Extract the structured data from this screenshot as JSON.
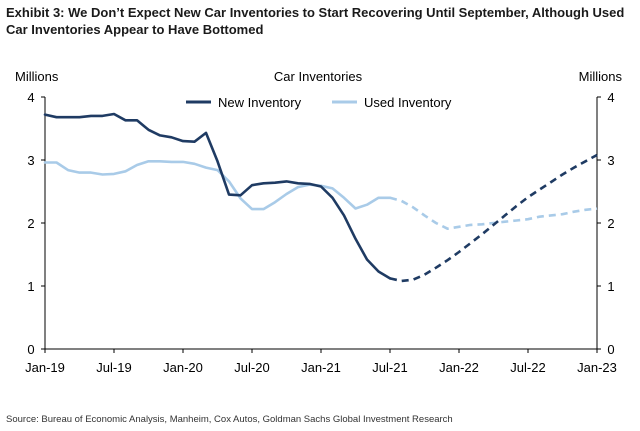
{
  "header": {
    "title": "Exhibit 3: We Don’t Expect New Car Inventories to Start Recovering Until September, Although Used Car Inventories Appear to Have Bottomed"
  },
  "footer": {
    "source": "Source: Bureau of Economic Analysis, Manheim, Cox Autos, Goldman Sachs Global Investment Research"
  },
  "colors": {
    "new_inventory": "#1f3b63",
    "used_inventory": "#a9cbe8",
    "axis": "#000000"
  },
  "chart_data": {
    "type": "line",
    "title": "Car Inventories",
    "ylabel_left": "Millions",
    "ylabel_right": "Millions",
    "ylim": [
      0,
      4
    ],
    "yticks": [
      0,
      1,
      2,
      3,
      4
    ],
    "xlim": [
      "2019-01",
      "2023-01"
    ],
    "xticks": [
      {
        "label": "Jan-19",
        "date": "2019-01"
      },
      {
        "label": "Jul-19",
        "date": "2019-07"
      },
      {
        "label": "Jan-20",
        "date": "2020-01"
      },
      {
        "label": "Jul-20",
        "date": "2020-07"
      },
      {
        "label": "Jan-21",
        "date": "2021-01"
      },
      {
        "label": "Jul-21",
        "date": "2021-07"
      },
      {
        "label": "Jan-22",
        "date": "2022-01"
      },
      {
        "label": "Jul-22",
        "date": "2022-07"
      },
      {
        "label": "Jan-23",
        "date": "2023-01"
      }
    ],
    "grid": false,
    "legend_position": "top-center",
    "series": [
      {
        "name": "New Inventory",
        "color_key": "new_inventory",
        "actual": [
          {
            "date": "2019-01",
            "y": 3.72
          },
          {
            "date": "2019-02",
            "y": 3.68
          },
          {
            "date": "2019-03",
            "y": 3.68
          },
          {
            "date": "2019-04",
            "y": 3.68
          },
          {
            "date": "2019-05",
            "y": 3.7
          },
          {
            "date": "2019-06",
            "y": 3.7
          },
          {
            "date": "2019-07",
            "y": 3.73
          },
          {
            "date": "2019-08",
            "y": 3.63
          },
          {
            "date": "2019-09",
            "y": 3.63
          },
          {
            "date": "2019-10",
            "y": 3.48
          },
          {
            "date": "2019-11",
            "y": 3.39
          },
          {
            "date": "2019-12",
            "y": 3.36
          },
          {
            "date": "2020-01",
            "y": 3.3
          },
          {
            "date": "2020-02",
            "y": 3.29
          },
          {
            "date": "2020-03",
            "y": 3.43
          },
          {
            "date": "2020-04",
            "y": 2.98
          },
          {
            "date": "2020-05",
            "y": 2.45
          },
          {
            "date": "2020-06",
            "y": 2.44
          },
          {
            "date": "2020-07",
            "y": 2.6
          },
          {
            "date": "2020-08",
            "y": 2.63
          },
          {
            "date": "2020-09",
            "y": 2.64
          },
          {
            "date": "2020-10",
            "y": 2.66
          },
          {
            "date": "2020-11",
            "y": 2.63
          },
          {
            "date": "2020-12",
            "y": 2.62
          },
          {
            "date": "2021-01",
            "y": 2.58
          },
          {
            "date": "2021-02",
            "y": 2.4
          },
          {
            "date": "2021-03",
            "y": 2.12
          },
          {
            "date": "2021-04",
            "y": 1.75
          },
          {
            "date": "2021-05",
            "y": 1.42
          },
          {
            "date": "2021-06",
            "y": 1.23
          },
          {
            "date": "2021-07",
            "y": 1.12
          }
        ],
        "forecast": [
          {
            "date": "2021-07",
            "y": 1.12
          },
          {
            "date": "2021-08",
            "y": 1.08
          },
          {
            "date": "2021-09",
            "y": 1.1
          },
          {
            "date": "2021-10",
            "y": 1.18
          },
          {
            "date": "2021-11",
            "y": 1.29
          },
          {
            "date": "2021-12",
            "y": 1.41
          },
          {
            "date": "2022-01",
            "y": 1.54
          },
          {
            "date": "2022-02",
            "y": 1.68
          },
          {
            "date": "2022-03",
            "y": 1.82
          },
          {
            "date": "2022-04",
            "y": 1.97
          },
          {
            "date": "2022-05",
            "y": 2.12
          },
          {
            "date": "2022-06",
            "y": 2.27
          },
          {
            "date": "2022-07",
            "y": 2.41
          },
          {
            "date": "2022-08",
            "y": 2.53
          },
          {
            "date": "2022-09",
            "y": 2.65
          },
          {
            "date": "2022-10",
            "y": 2.77
          },
          {
            "date": "2022-11",
            "y": 2.88
          },
          {
            "date": "2022-12",
            "y": 2.98
          },
          {
            "date": "2023-01",
            "y": 3.08
          }
        ]
      },
      {
        "name": "Used Inventory",
        "color_key": "used_inventory",
        "actual": [
          {
            "date": "2019-01",
            "y": 2.96
          },
          {
            "date": "2019-02",
            "y": 2.96
          },
          {
            "date": "2019-03",
            "y": 2.84
          },
          {
            "date": "2019-04",
            "y": 2.8
          },
          {
            "date": "2019-05",
            "y": 2.8
          },
          {
            "date": "2019-06",
            "y": 2.77
          },
          {
            "date": "2019-07",
            "y": 2.78
          },
          {
            "date": "2019-08",
            "y": 2.82
          },
          {
            "date": "2019-09",
            "y": 2.92
          },
          {
            "date": "2019-10",
            "y": 2.98
          },
          {
            "date": "2019-11",
            "y": 2.98
          },
          {
            "date": "2019-12",
            "y": 2.97
          },
          {
            "date": "2020-01",
            "y": 2.97
          },
          {
            "date": "2020-02",
            "y": 2.94
          },
          {
            "date": "2020-03",
            "y": 2.88
          },
          {
            "date": "2020-04",
            "y": 2.84
          },
          {
            "date": "2020-05",
            "y": 2.66
          },
          {
            "date": "2020-06",
            "y": 2.39
          },
          {
            "date": "2020-07",
            "y": 2.22
          },
          {
            "date": "2020-08",
            "y": 2.22
          },
          {
            "date": "2020-09",
            "y": 2.33
          },
          {
            "date": "2020-10",
            "y": 2.46
          },
          {
            "date": "2020-11",
            "y": 2.57
          },
          {
            "date": "2020-12",
            "y": 2.61
          },
          {
            "date": "2021-01",
            "y": 2.59
          },
          {
            "date": "2021-02",
            "y": 2.55
          },
          {
            "date": "2021-03",
            "y": 2.4
          },
          {
            "date": "2021-04",
            "y": 2.23
          },
          {
            "date": "2021-05",
            "y": 2.29
          },
          {
            "date": "2021-06",
            "y": 2.4
          },
          {
            "date": "2021-07",
            "y": 2.4
          }
        ],
        "forecast": [
          {
            "date": "2021-07",
            "y": 2.4
          },
          {
            "date": "2021-08",
            "y": 2.35
          },
          {
            "date": "2021-09",
            "y": 2.25
          },
          {
            "date": "2021-10",
            "y": 2.12
          },
          {
            "date": "2021-11",
            "y": 2.0
          },
          {
            "date": "2021-12",
            "y": 1.91
          },
          {
            "date": "2022-01",
            "y": 1.94
          },
          {
            "date": "2022-02",
            "y": 1.97
          },
          {
            "date": "2022-03",
            "y": 1.98
          },
          {
            "date": "2022-04",
            "y": 2.0
          },
          {
            "date": "2022-05",
            "y": 2.02
          },
          {
            "date": "2022-06",
            "y": 2.04
          },
          {
            "date": "2022-07",
            "y": 2.06
          },
          {
            "date": "2022-08",
            "y": 2.1
          },
          {
            "date": "2022-09",
            "y": 2.12
          },
          {
            "date": "2022-10",
            "y": 2.14
          },
          {
            "date": "2022-11",
            "y": 2.18
          },
          {
            "date": "2022-12",
            "y": 2.21
          },
          {
            "date": "2023-01",
            "y": 2.23
          }
        ]
      }
    ]
  }
}
